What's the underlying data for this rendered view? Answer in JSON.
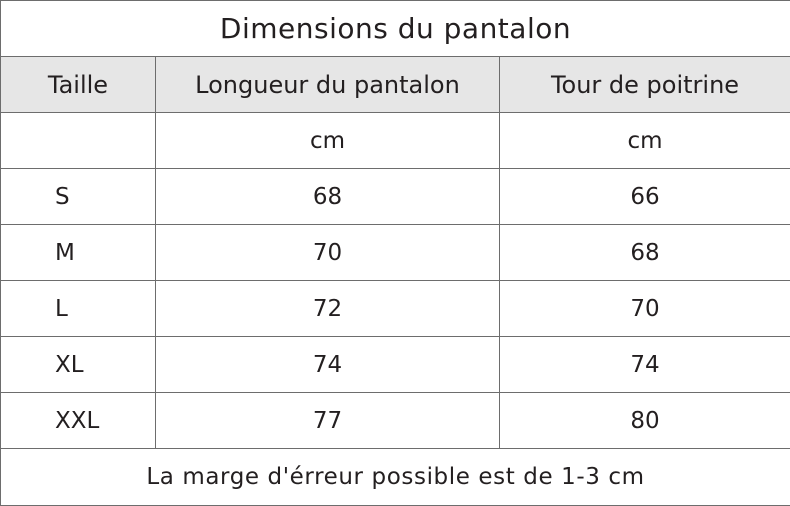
{
  "title": "Dimensions du pantalon",
  "headers": {
    "size": "Taille",
    "length": "Longueur du pantalon",
    "chest": "Tour de poitrine"
  },
  "units": {
    "size": "",
    "length": "cm",
    "chest": "cm"
  },
  "rows": [
    {
      "size": "S",
      "length": "68",
      "chest": "66"
    },
    {
      "size": "M",
      "length": "70",
      "chest": "68"
    },
    {
      "size": "L",
      "length": "72",
      "chest": "70"
    },
    {
      "size": "XL",
      "length": "74",
      "chest": "74"
    },
    {
      "size": "XXL",
      "length": "77",
      "chest": "80"
    }
  ],
  "footer": "La marge d'érreur possible est de 1-3 cm",
  "colors": {
    "text": "#231f20",
    "header_bg": "#e6e6e6",
    "border": "#6d6d6d"
  }
}
